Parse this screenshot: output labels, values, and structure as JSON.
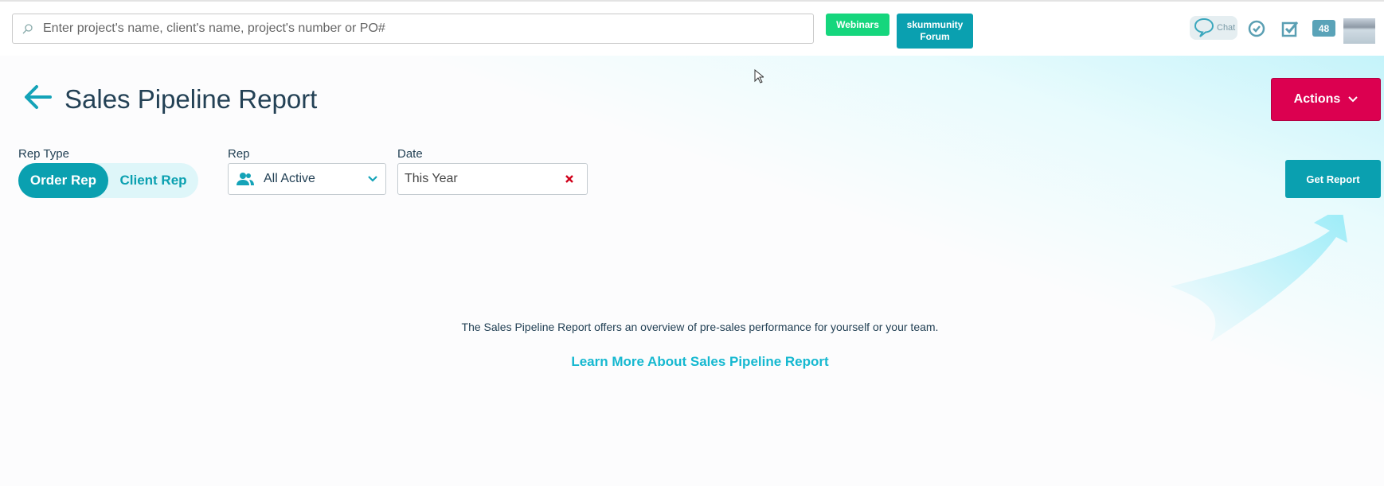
{
  "header": {
    "search": {
      "placeholder": "Enter project's name, client's name, project's number or PO#",
      "value": ""
    },
    "webinars_label": "Webinars",
    "forum_label_line1": "skummunity",
    "forum_label_line2": "Forum",
    "chat_label": "Chat",
    "notification_count": "48"
  },
  "page": {
    "title": "Sales Pipeline Report",
    "actions_label": "Actions"
  },
  "filters": {
    "rep_type_label": "Rep Type",
    "rep_type_options": [
      "Order Rep",
      "Client Rep"
    ],
    "rep_type_selected": "Order Rep",
    "rep_label": "Rep",
    "rep_value": "All Active",
    "date_label": "Date",
    "date_value": "This Year",
    "get_report_label": "Get Report"
  },
  "body": {
    "description": "The Sales Pipeline Report offers an overview of pre-sales performance for yourself or your team.",
    "learn_more": "Learn More About Sales Pipeline Report"
  },
  "colors": {
    "accent": "#0aa0b0",
    "actions": "#dc0050",
    "webinars": "#15d67d",
    "link": "#15b8d0",
    "clear": "#d0021b"
  }
}
